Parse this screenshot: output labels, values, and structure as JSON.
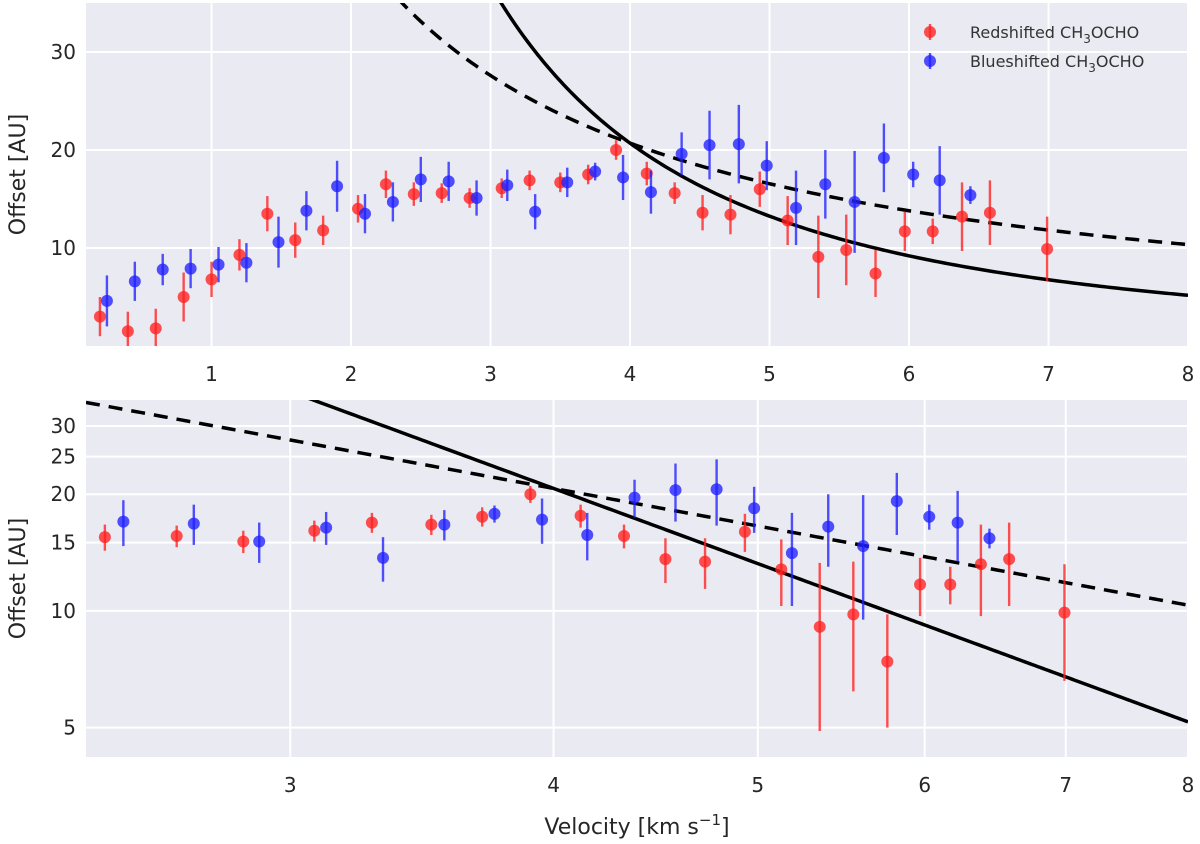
{
  "chart_data": [
    {
      "panel": "top",
      "type": "scatter",
      "x_scale": "linear",
      "y_scale": "linear",
      "xlim": [
        0.1,
        8
      ],
      "ylim": [
        0,
        35
      ],
      "xticks": [
        1,
        2,
        3,
        4,
        5,
        6,
        7,
        8
      ],
      "yticks": [
        10,
        20,
        30
      ],
      "xlabel": "",
      "ylabel": "Offset [AU]",
      "grid": true,
      "legend": {
        "placement": "top-right",
        "entries": [
          {
            "series": "red",
            "label": "Redshifted CH",
            "sub": "3",
            "rest": "OCHO"
          },
          {
            "series": "blue",
            "label": "Blueshifted CH",
            "sub": "3",
            "rest": "OCHO"
          }
        ]
      }
    },
    {
      "panel": "bottom",
      "type": "scatter",
      "x_scale": "log",
      "y_scale": "log",
      "xlim": [
        2.4,
        8
      ],
      "ylim": [
        4.2,
        35
      ],
      "xticks": [
        3,
        4,
        5,
        6,
        7,
        8
      ],
      "yticks": [
        5,
        10,
        15,
        20,
        25,
        30
      ],
      "xlabel": "Velocity [km s",
      "xlabel_sup": "−1",
      "xlabel_end": "]",
      "ylabel": "Offset [AU]",
      "grid": true
    }
  ],
  "series": [
    {
      "name": "Redshifted CH3OCHO",
      "color": "#ff2020",
      "points": [
        {
          "x": 0.2,
          "y": 3.0,
          "err": 2.0
        },
        {
          "x": 0.4,
          "y": 1.5,
          "err": 2.0
        },
        {
          "x": 0.6,
          "y": 1.8,
          "err": 2.0
        },
        {
          "x": 0.8,
          "y": 5.0,
          "err": 2.5
        },
        {
          "x": 1.0,
          "y": 6.8,
          "err": 1.8
        },
        {
          "x": 1.2,
          "y": 9.3,
          "err": 1.6
        },
        {
          "x": 1.4,
          "y": 13.5,
          "err": 1.8
        },
        {
          "x": 1.6,
          "y": 10.8,
          "err": 1.8
        },
        {
          "x": 1.8,
          "y": 11.8,
          "err": 1.5
        },
        {
          "x": 2.05,
          "y": 14.0,
          "err": 1.4
        },
        {
          "x": 2.25,
          "y": 16.5,
          "err": 1.4
        },
        {
          "x": 2.45,
          "y": 15.5,
          "err": 1.2
        },
        {
          "x": 2.65,
          "y": 15.6,
          "err": 1.0
        },
        {
          "x": 2.85,
          "y": 15.1,
          "err": 1.0
        },
        {
          "x": 3.08,
          "y": 16.1,
          "err": 1.0
        },
        {
          "x": 3.28,
          "y": 16.9,
          "err": 1.0
        },
        {
          "x": 3.5,
          "y": 16.7,
          "err": 1.0
        },
        {
          "x": 3.7,
          "y": 17.5,
          "err": 1.0
        },
        {
          "x": 3.9,
          "y": 20.0,
          "err": 1.0
        },
        {
          "x": 4.12,
          "y": 17.6,
          "err": 1.2
        },
        {
          "x": 4.32,
          "y": 15.6,
          "err": 1.1
        },
        {
          "x": 4.52,
          "y": 13.6,
          "err": 1.8
        },
        {
          "x": 4.72,
          "y": 13.4,
          "err": 2.0
        },
        {
          "x": 4.93,
          "y": 16.0,
          "err": 1.8
        },
        {
          "x": 5.13,
          "y": 12.8,
          "err": 2.5
        },
        {
          "x": 5.35,
          "y": 9.1,
          "err": 4.2
        },
        {
          "x": 5.55,
          "y": 9.8,
          "err": 3.6
        },
        {
          "x": 5.76,
          "y": 7.4,
          "err": 2.4
        },
        {
          "x": 5.97,
          "y": 11.7,
          "err": 2.0
        },
        {
          "x": 6.17,
          "y": 11.7,
          "err": 1.3
        },
        {
          "x": 6.38,
          "y": 13.2,
          "err": 3.5
        },
        {
          "x": 6.58,
          "y": 13.6,
          "err": 3.3
        },
        {
          "x": 6.99,
          "y": 9.9,
          "err": 3.3
        }
      ]
    },
    {
      "name": "Blueshifted CH3OCHO",
      "color": "#2020ff",
      "points": [
        {
          "x": 0.25,
          "y": 4.6,
          "err": 2.6
        },
        {
          "x": 0.45,
          "y": 6.6,
          "err": 2.0
        },
        {
          "x": 0.65,
          "y": 7.8,
          "err": 1.6
        },
        {
          "x": 0.85,
          "y": 7.9,
          "err": 2.0
        },
        {
          "x": 1.05,
          "y": 8.3,
          "err": 1.8
        },
        {
          "x": 1.25,
          "y": 8.5,
          "err": 2.0
        },
        {
          "x": 1.48,
          "y": 10.6,
          "err": 2.6
        },
        {
          "x": 1.68,
          "y": 13.8,
          "err": 2.0
        },
        {
          "x": 1.9,
          "y": 16.3,
          "err": 2.6
        },
        {
          "x": 2.1,
          "y": 13.5,
          "err": 2.0
        },
        {
          "x": 2.3,
          "y": 14.7,
          "err": 2.0
        },
        {
          "x": 2.5,
          "y": 17.0,
          "err": 2.3
        },
        {
          "x": 2.7,
          "y": 16.8,
          "err": 2.0
        },
        {
          "x": 2.9,
          "y": 15.1,
          "err": 1.8
        },
        {
          "x": 3.12,
          "y": 16.4,
          "err": 1.6
        },
        {
          "x": 3.32,
          "y": 13.7,
          "err": 1.8
        },
        {
          "x": 3.55,
          "y": 16.7,
          "err": 1.5
        },
        {
          "x": 3.75,
          "y": 17.8,
          "err": 0.9
        },
        {
          "x": 3.95,
          "y": 17.2,
          "err": 2.3
        },
        {
          "x": 4.15,
          "y": 15.7,
          "err": 2.2
        },
        {
          "x": 4.37,
          "y": 19.6,
          "err": 2.2
        },
        {
          "x": 4.57,
          "y": 20.5,
          "err": 3.5
        },
        {
          "x": 4.78,
          "y": 20.6,
          "err": 4.0
        },
        {
          "x": 4.98,
          "y": 18.4,
          "err": 2.5
        },
        {
          "x": 5.19,
          "y": 14.1,
          "err": 3.8
        },
        {
          "x": 5.4,
          "y": 16.5,
          "err": 3.5
        },
        {
          "x": 5.61,
          "y": 14.7,
          "err": 5.2
        },
        {
          "x": 5.82,
          "y": 19.2,
          "err": 3.5
        },
        {
          "x": 6.03,
          "y": 17.5,
          "err": 1.3
        },
        {
          "x": 6.22,
          "y": 16.9,
          "err": 3.5
        },
        {
          "x": 6.44,
          "y": 15.4,
          "err": 0.9
        }
      ]
    }
  ],
  "models": [
    {
      "name": "solid",
      "style": "solid",
      "color": "#000000",
      "k": 331.2,
      "alpha": 2.0
    },
    {
      "name": "dashed",
      "style": "dashed",
      "color": "#000000",
      "k": 82.8,
      "alpha": 1.0
    }
  ]
}
